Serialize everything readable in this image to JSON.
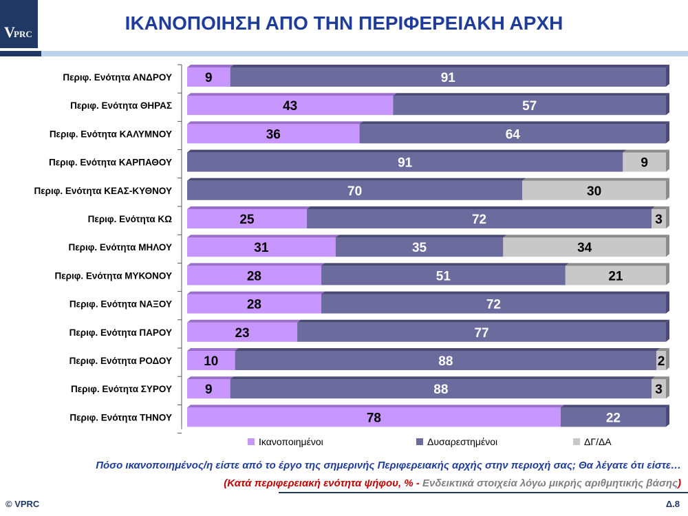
{
  "header": {
    "logo_text_v": "V",
    "logo_text_prc": "PRC",
    "title": "ΙΚΑΝΟΠΟΙΗΣΗ ΑΠΟ ΤΗΝ ΠΕΡΙΦΕΡΕΙΑΚΗ ΑΡΧΗ"
  },
  "footer": {
    "question": "Πόσο ικανοποιημένος/η είστε από το έργο της σημερινής Περιφερειακής αρχής στην περιοχή σας; Θα λέγατε ότι είστε…",
    "note_open": "(Κατά περιφερειακή ενότητα ψήφου, % - ",
    "note_gray": "Ενδεικτικά στοιχεία λόγω μικρής αριθμητικής βάσης",
    "note_close": ")",
    "copyright": "© VPRC",
    "page": "Δ.8"
  },
  "colors": {
    "satisfied": "#c896ff",
    "dissatisfied": "#6b6b9e",
    "dk": "#c8c8c8",
    "title_blue": "#1f3c99"
  },
  "chart_data": {
    "type": "bar",
    "orientation": "horizontal",
    "stacked": true,
    "categories": [
      "Περιφ. Ενότητα ΑΝΔΡΟΥ",
      "Περιφ. Ενότητα ΘΗΡΑΣ",
      "Περιφ. Ενότητα ΚΑΛΥΜΝΟΥ",
      "Περιφ. Ενότητα ΚΑΡΠΑΘΟΥ",
      "Περιφ. Ενότητα ΚΕΑΣ-ΚΥΘΝΟΥ",
      "Περιφ. Ενότητα ΚΩ",
      "Περιφ. Ενότητα ΜΗΛΟΥ",
      "Περιφ. Ενότητα ΜΥΚΟΝΟΥ",
      "Περιφ. Ενότητα ΝΑΞΟΥ",
      "Περιφ. Ενότητα ΠΑΡΟΥ",
      "Περιφ. Ενότητα ΡΟΔΟΥ",
      "Περιφ. Ενότητα ΣΥΡΟΥ",
      "Περιφ. Ενότητα ΤΗΝΟΥ"
    ],
    "series": [
      {
        "name": "Ικανοποιημένοι",
        "values": [
          9,
          43,
          36,
          0,
          0,
          25,
          31,
          28,
          28,
          23,
          10,
          9,
          78
        ]
      },
      {
        "name": "Δυσαρεστημένοι",
        "values": [
          91,
          57,
          64,
          91,
          70,
          72,
          35,
          51,
          72,
          77,
          88,
          88,
          22
        ]
      },
      {
        "name": "ΔΓ/ΔΑ",
        "values": [
          0,
          0,
          0,
          9,
          30,
          3,
          34,
          21,
          0,
          0,
          2,
          3,
          0
        ]
      }
    ],
    "xlim": [
      0,
      100
    ],
    "legend_position": "bottom",
    "grid": false
  }
}
